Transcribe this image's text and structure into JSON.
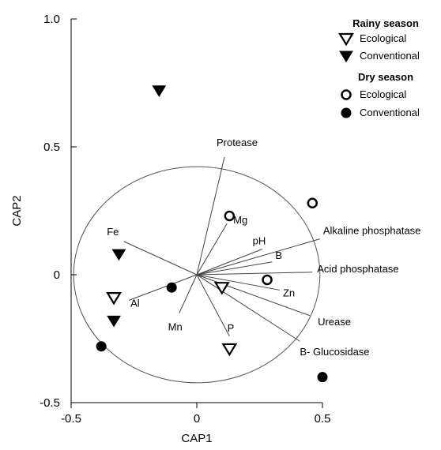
{
  "chart_data": {
    "type": "scatter",
    "xlabel": "CAP1",
    "ylabel": "CAP2",
    "xlim": [
      -0.5,
      0.5
    ],
    "ylim": [
      -0.5,
      1.0
    ],
    "x_ticks": [
      "-0.5",
      "0",
      "0.5"
    ],
    "y_ticks": [
      "-0.5",
      "0",
      "0.5",
      "1.0"
    ],
    "correlation_circle_radius": 0.5,
    "legend": {
      "placement": "top-right",
      "groups": [
        {
          "title": "Rainy season",
          "items": [
            "Ecological",
            "Conventional"
          ]
        },
        {
          "title": "Dry season",
          "items": [
            "Ecological",
            "Conventional"
          ]
        }
      ]
    },
    "series": [
      {
        "season": "Rainy season",
        "type": "Ecological",
        "marker": "triangle-down-open",
        "points": [
          {
            "x": -0.33,
            "y": -0.09
          },
          {
            "x": 0.1,
            "y": -0.05
          },
          {
            "x": 0.13,
            "y": -0.29
          }
        ]
      },
      {
        "season": "Rainy season",
        "type": "Conventional",
        "marker": "triangle-down-filled",
        "points": [
          {
            "x": -0.15,
            "y": 0.72
          },
          {
            "x": -0.31,
            "y": 0.08
          },
          {
            "x": -0.33,
            "y": -0.18
          }
        ]
      },
      {
        "season": "Dry season",
        "type": "Ecological",
        "marker": "circle-open",
        "points": [
          {
            "x": 0.13,
            "y": 0.23
          },
          {
            "x": 0.46,
            "y": 0.28
          },
          {
            "x": 0.28,
            "y": -0.02
          }
        ]
      },
      {
        "season": "Dry season",
        "type": "Conventional",
        "marker": "circle-filled",
        "points": [
          {
            "x": -0.1,
            "y": -0.05
          },
          {
            "x": -0.38,
            "y": -0.28
          },
          {
            "x": 0.5,
            "y": -0.4
          }
        ]
      }
    ],
    "vectors": [
      {
        "label": "Protease",
        "x": 0.11,
        "y": 0.46
      },
      {
        "label": "Mg",
        "x": 0.12,
        "y": 0.2
      },
      {
        "label": "pH",
        "x": 0.26,
        "y": 0.1
      },
      {
        "label": "Alkaline phosphatase",
        "x": 0.49,
        "y": 0.14
      },
      {
        "label": "B",
        "x": 0.3,
        "y": 0.05
      },
      {
        "label": "Acid phosphatase",
        "x": 0.46,
        "y": 0.01
      },
      {
        "label": "Zn",
        "x": 0.33,
        "y": -0.06
      },
      {
        "label": "Urease",
        "x": 0.45,
        "y": -0.16
      },
      {
        "label": "B- Glucosidase",
        "x": 0.41,
        "y": -0.26
      },
      {
        "label": "P",
        "x": 0.13,
        "y": -0.24
      },
      {
        "label": "Mn",
        "x": -0.07,
        "y": -0.15
      },
      {
        "label": "Al",
        "x": -0.27,
        "y": -0.1
      },
      {
        "label": "Fe",
        "x": -0.29,
        "y": 0.13
      }
    ]
  }
}
